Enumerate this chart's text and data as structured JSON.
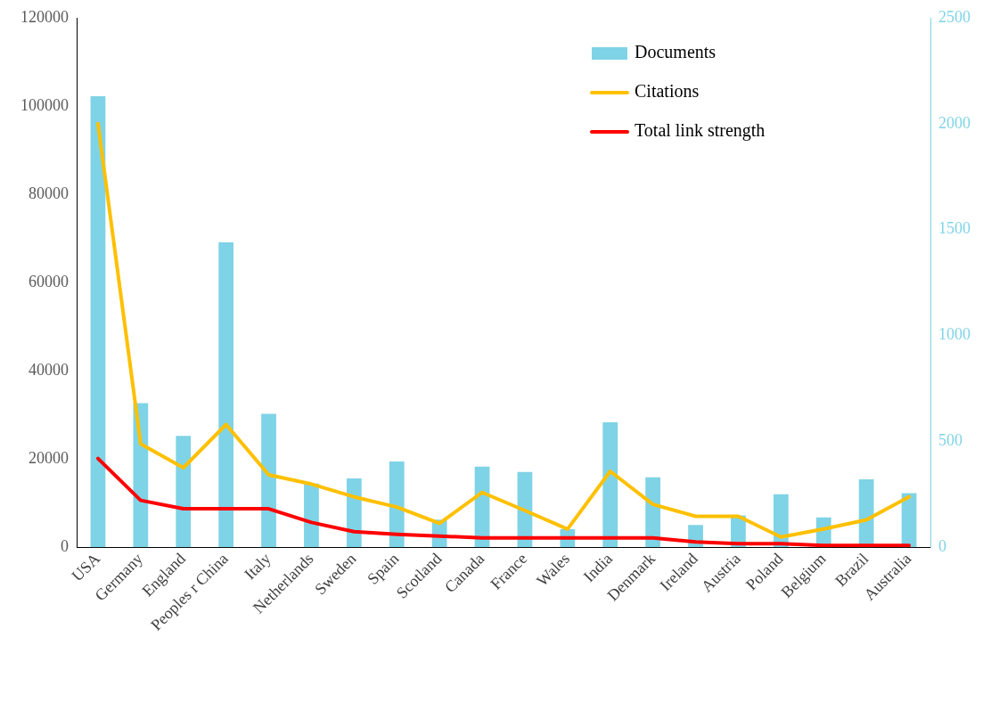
{
  "chart_data": {
    "type": "bar",
    "categories": [
      "USA",
      "Germany",
      "England",
      "Peoples r China",
      "Italy",
      "Netherlands",
      "Sweden",
      "Spain",
      "Scotland",
      "Canada",
      "France",
      "Wales",
      "India",
      "Denmark",
      "Ireland",
      "Austria",
      "Poland",
      "Belgium",
      "Brazil",
      "Australia"
    ],
    "series": [
      {
        "name": "Documents",
        "axis": "y2",
        "color": "#7fd3e6",
        "values": [
          2130,
          680,
          525,
          1440,
          630,
          300,
          325,
          405,
          130,
          380,
          355,
          85,
          590,
          330,
          105,
          150,
          250,
          140,
          320,
          255
        ]
      },
      {
        "name": "Citations",
        "type": "line",
        "color": "#ffc000",
        "values": [
          96000,
          23400,
          18000,
          27800,
          16400,
          14300,
          11400,
          9100,
          5400,
          12400,
          8300,
          4100,
          17200,
          9700,
          7000,
          7000,
          2300,
          4100,
          6200,
          11400
        ]
      },
      {
        "name": "Total link strength",
        "type": "line",
        "color": "#ff0000",
        "values": [
          20100,
          10600,
          8700,
          8700,
          8700,
          5600,
          3500,
          2900,
          2500,
          2100,
          2100,
          2100,
          2100,
          2100,
          1200,
          800,
          800,
          400,
          400,
          400
        ]
      }
    ],
    "ylim": [
      0,
      120000
    ],
    "yticks": [
      0,
      20000,
      40000,
      60000,
      80000,
      100000,
      120000
    ],
    "y2lim": [
      0,
      2500
    ],
    "y2ticks": [
      0,
      500,
      1000,
      1500,
      2000,
      2500
    ],
    "grid": false,
    "legend": "top right",
    "marker": "none",
    "line_style": "solid"
  }
}
